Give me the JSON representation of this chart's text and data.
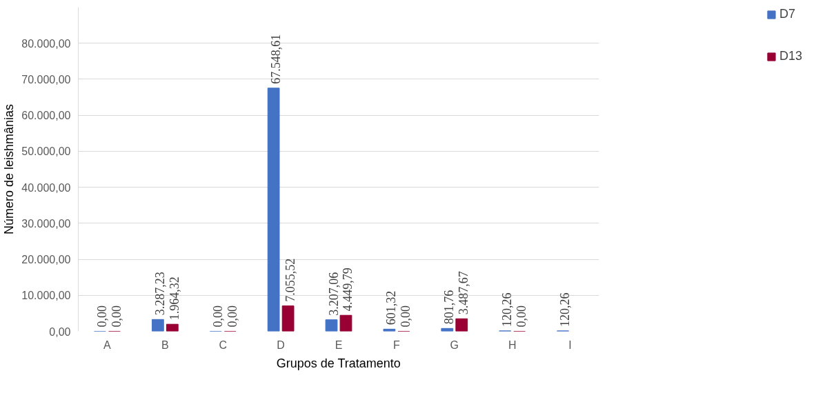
{
  "chart_data": {
    "type": "bar",
    "xlabel": "Grupos de Tratamento",
    "ylabel": "Número de leishmânias",
    "categories": [
      "A",
      "B",
      "C",
      "D",
      "E",
      "F",
      "G",
      "H",
      "I"
    ],
    "series": [
      {
        "name": "D7",
        "color": "#4472c4",
        "values": [
          0,
          3287.23,
          0,
          67548.61,
          3207.06,
          601.32,
          801.76,
          120.26,
          120.26
        ],
        "value_labels": [
          "0,00",
          "3.287,23",
          "0,00",
          "67.548,61",
          "3.207,06",
          "601,32",
          "801,76",
          "120,26",
          "120,26"
        ]
      },
      {
        "name": "D13",
        "color": "#990033",
        "values": [
          0,
          1964.32,
          0,
          7055.52,
          4449.79,
          0,
          3487.67,
          0,
          null
        ],
        "value_labels": [
          "0,00",
          "1.964,32",
          "0,00",
          "7.055,52",
          "4.449,79",
          "0,00",
          "3.487,67",
          "0,00",
          null
        ]
      }
    ],
    "ylim": [
      0,
      90000
    ],
    "yticks": [
      {
        "value": 0,
        "label": "0,00"
      },
      {
        "value": 10000,
        "label": "10.000,00"
      },
      {
        "value": 20000,
        "label": "20.000,00"
      },
      {
        "value": 30000,
        "label": "30.000,00"
      },
      {
        "value": 40000,
        "label": "40.000,00"
      },
      {
        "value": 50000,
        "label": "50.000,00"
      },
      {
        "value": 60000,
        "label": "60.000,00"
      },
      {
        "value": 70000,
        "label": "70.000,00"
      },
      {
        "value": 80000,
        "label": "80.000,00"
      }
    ],
    "grid": "y",
    "legend": "top right"
  }
}
